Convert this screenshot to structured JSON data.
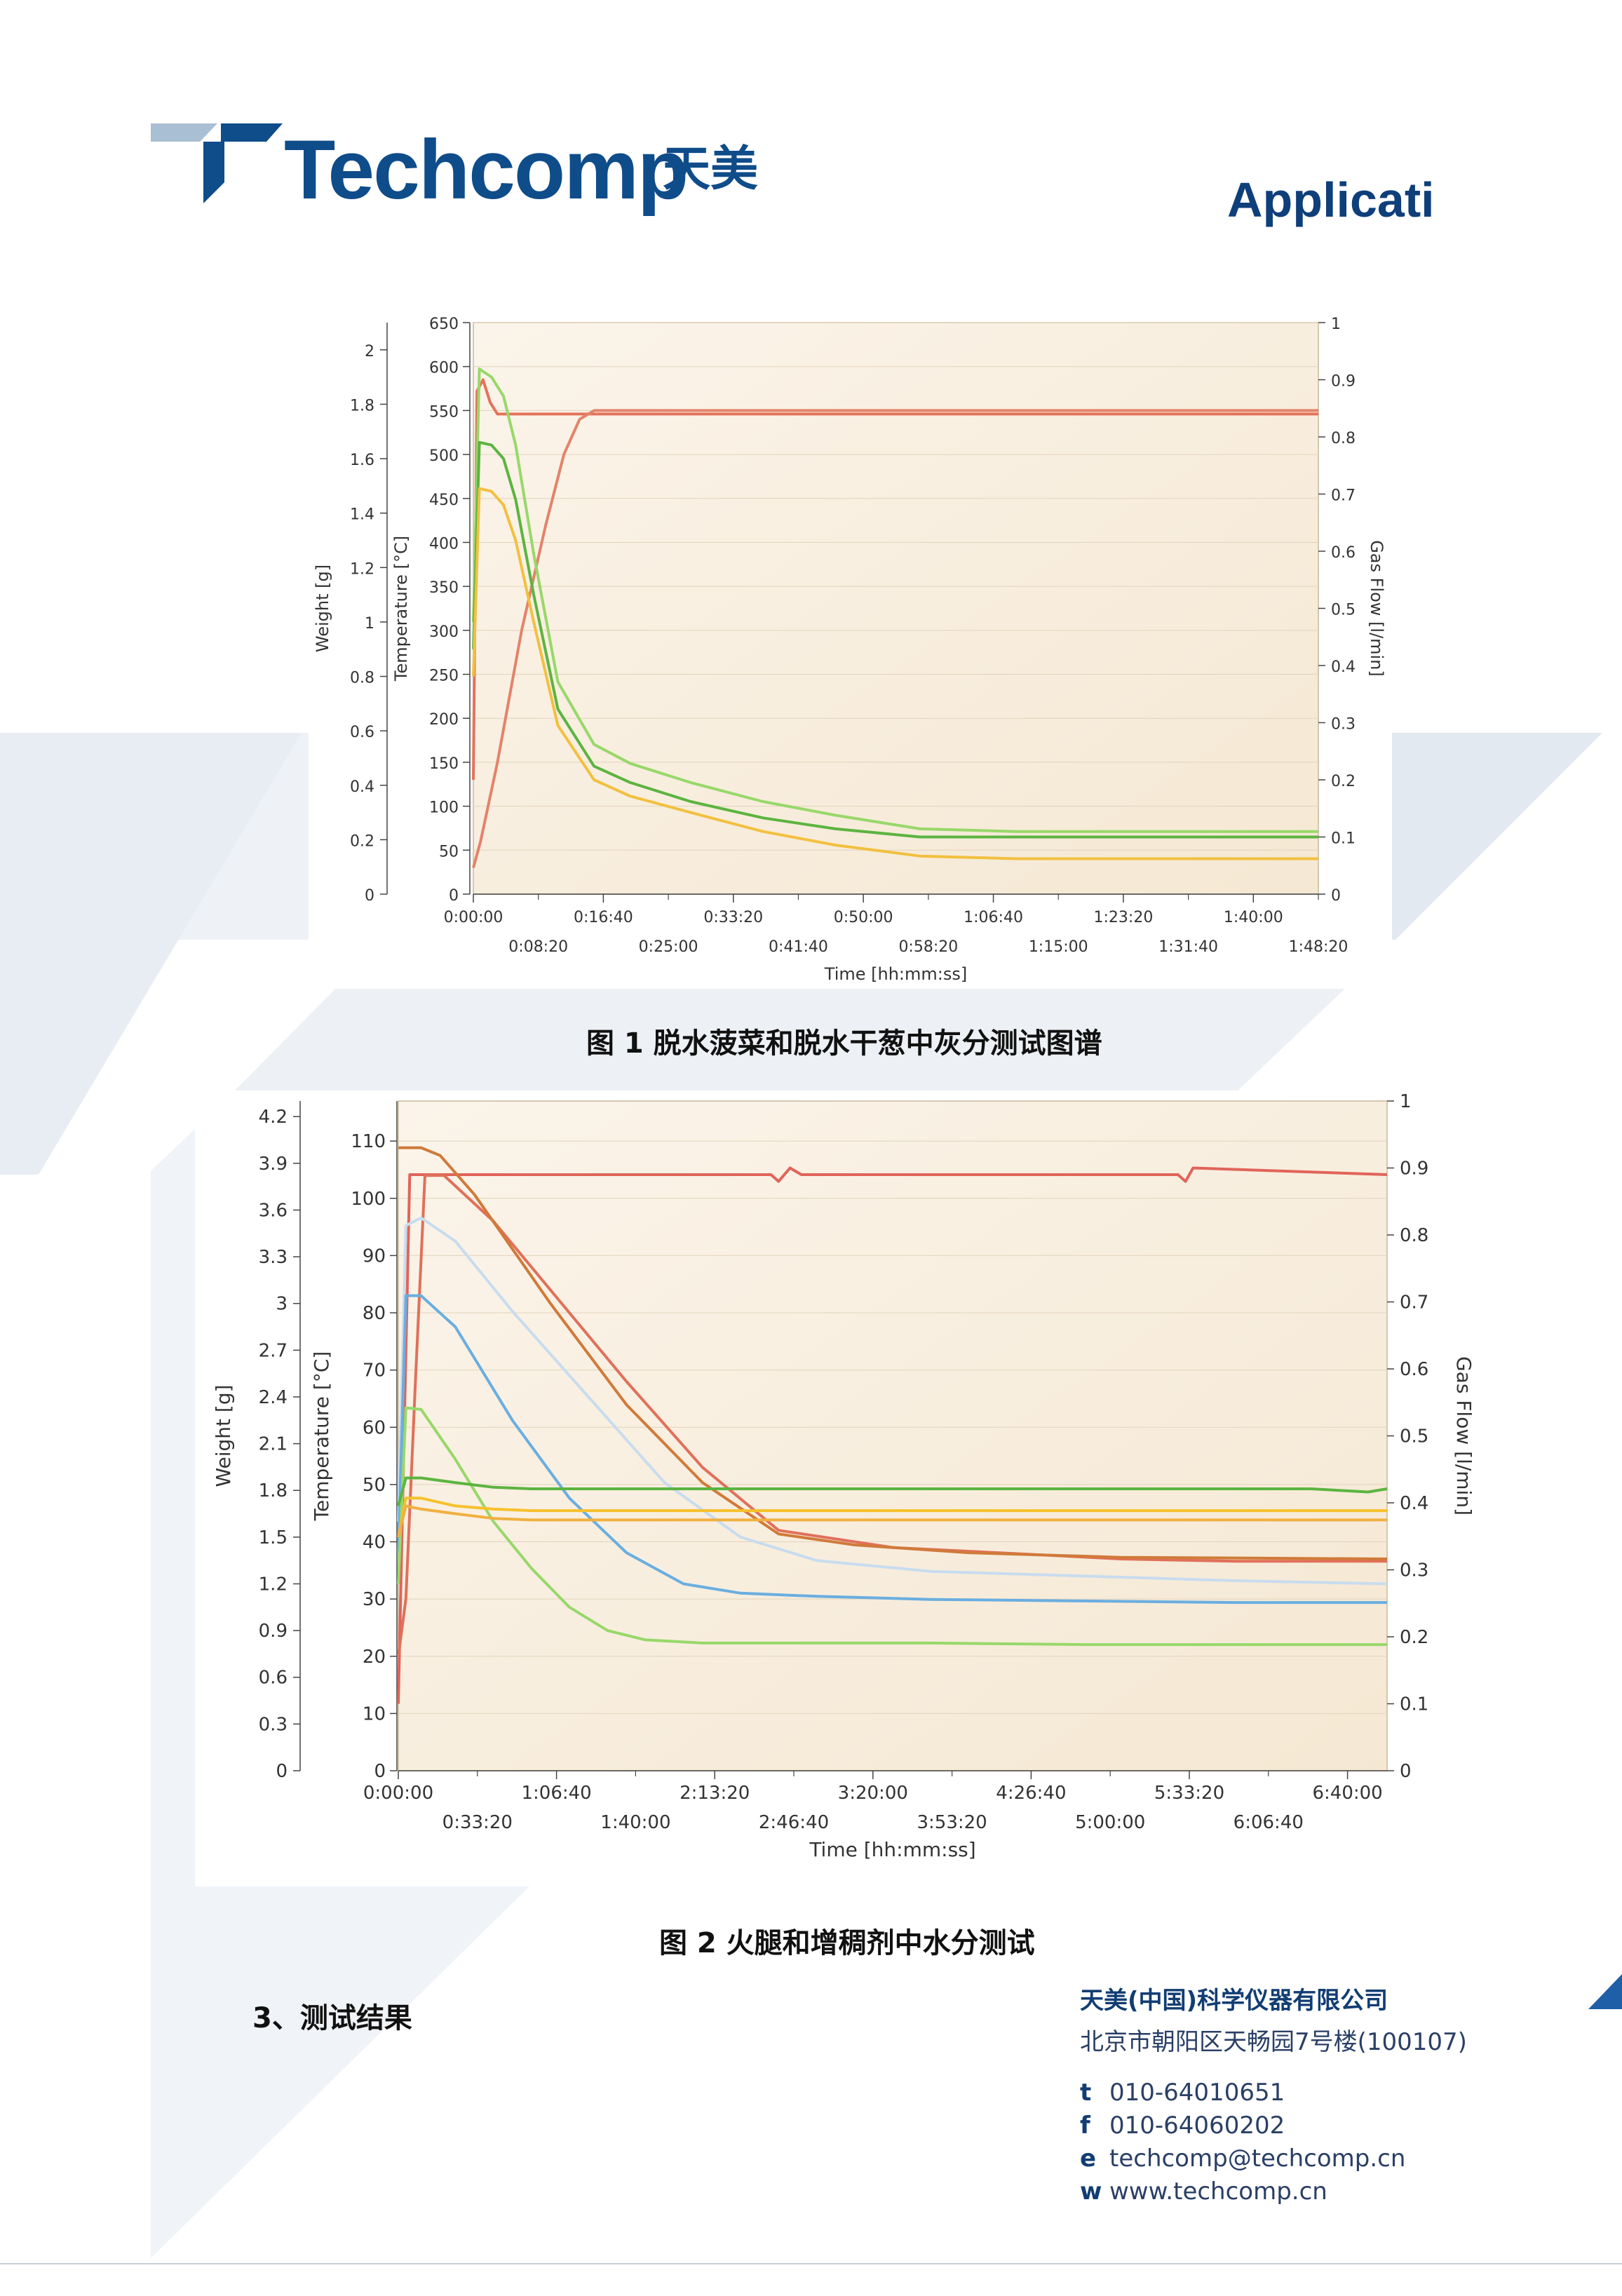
{
  "header": {
    "logo_text": "Techcomp",
    "logo_cn": "天美",
    "doc_type": "Applicati"
  },
  "chart_data": [
    {
      "type": "line",
      "xlabel": "Time [hh:mm:ss]",
      "ylabel": "Temperature [°C]",
      "y2label": "Weight [g]",
      "y3label": "Gas Flow [l/min]",
      "xlim": [
        0,
        7000
      ],
      "ylim": [
        0,
        650
      ],
      "y2lim": [
        0,
        2.1
      ],
      "y3lim": [
        0,
        1
      ],
      "x_ticks_top": [
        "0:00:00",
        "0:16:40",
        "0:33:20",
        "0:50:00",
        "1:06:40",
        "1:23:20",
        "1:40:00"
      ],
      "x_ticks_bottom": [
        "0:08:20",
        "0:25:00",
        "0:41:40",
        "0:58:20",
        "1:15:00",
        "1:31:40",
        "1:48:20"
      ],
      "y_ticks": [
        "650",
        "600",
        "550",
        "500",
        "450",
        "400",
        "350",
        "300",
        "250",
        "200",
        "150",
        "100",
        "50",
        "0"
      ],
      "y2_ticks": [
        "2",
        "1.8",
        "1.6",
        "1.4",
        "1.2",
        "1",
        "0.8",
        "0.6",
        "0.4",
        "0.2",
        "0"
      ],
      "y3_ticks": [
        "1",
        "0.9",
        "0.8",
        "0.7",
        "0.6",
        "0.5",
        "0.4",
        "0.3",
        "0.2",
        "0.1",
        "0"
      ],
      "series": [
        {
          "color": "#e3735b",
          "x": [
            0,
            30,
            80,
            140,
            200,
            260,
            300,
            400,
            7000
          ],
          "y": [
            0.2,
            0.88,
            0.9,
            0.86,
            0.84,
            0.84,
            0.84,
            0.84,
            0.84
          ],
          "axis": "y3"
        },
        {
          "color": "#e3836b",
          "x": [
            0,
            60,
            200,
            400,
            600,
            750,
            880,
            1000,
            7000
          ],
          "y": [
            30,
            60,
            150,
            300,
            420,
            500,
            540,
            550,
            550
          ],
          "axis": "y"
        },
        {
          "color": "#98d86a",
          "x": [
            0,
            50,
            150,
            250,
            350,
            500,
            700,
            1000,
            1300,
            1800,
            2400,
            3000,
            3700,
            4500,
            7000
          ],
          "y": [
            1.0,
            1.93,
            1.9,
            1.83,
            1.65,
            1.25,
            0.78,
            0.55,
            0.48,
            0.41,
            0.34,
            0.29,
            0.24,
            0.23,
            0.23
          ],
          "axis": "y2"
        },
        {
          "color": "#5cb440",
          "x": [
            0,
            50,
            150,
            250,
            350,
            500,
            700,
            1000,
            1300,
            1800,
            2400,
            3000,
            3700,
            4500,
            7000
          ],
          "y": [
            0.9,
            1.66,
            1.65,
            1.6,
            1.45,
            1.1,
            0.68,
            0.47,
            0.41,
            0.34,
            0.28,
            0.24,
            0.21,
            0.21,
            0.21
          ],
          "axis": "y2"
        },
        {
          "color": "#f2c040",
          "x": [
            0,
            50,
            150,
            250,
            350,
            500,
            700,
            1000,
            1300,
            1800,
            2400,
            3000,
            3700,
            4500,
            7000
          ],
          "y": [
            0.8,
            1.49,
            1.48,
            1.43,
            1.3,
            1.0,
            0.62,
            0.42,
            0.36,
            0.3,
            0.23,
            0.18,
            0.14,
            0.13,
            0.13
          ],
          "axis": "y2"
        }
      ]
    },
    {
      "type": "line",
      "xlabel": "Time [hh:mm:ss]",
      "ylabel": "Temperature [°C]",
      "y2label": "Weight [g]",
      "y3label": "Gas Flow [l/min]",
      "xlim": [
        0,
        26000
      ],
      "ylim": [
        0,
        117
      ],
      "y2lim": [
        0,
        4.3
      ],
      "y3lim": [
        0,
        1
      ],
      "x_ticks_top": [
        "0:00:00",
        "1:06:40",
        "2:13:20",
        "3:20:00",
        "4:26:40",
        "5:33:20",
        "6:40:00"
      ],
      "x_ticks_bottom": [
        "0:33:20",
        "1:40:00",
        "2:46:40",
        "3:53:20",
        "5:00:00",
        "6:06:40"
      ],
      "y_ticks": [
        "110",
        "100",
        "90",
        "80",
        "70",
        "60",
        "50",
        "40",
        "30",
        "20",
        "10",
        "0"
      ],
      "y2_ticks": [
        "4.2",
        "3.9",
        "3.6",
        "3.3",
        "3",
        "2.7",
        "2.4",
        "2.1",
        "1.8",
        "1.5",
        "1.2",
        "0.9",
        "0.6",
        "0.3",
        "0"
      ],
      "y3_ticks": [
        "1",
        "0.9",
        "0.8",
        "0.7",
        "0.6",
        "0.5",
        "0.4",
        "0.3",
        "0.2",
        "0.1",
        "0"
      ],
      "series": [
        {
          "color": "#e0645a",
          "x": [
            0,
            300,
            700,
            9800,
            10000,
            10300,
            10600,
            20500,
            20700,
            20900,
            26000
          ],
          "y": [
            0.1,
            0.89,
            0.89,
            0.89,
            0.88,
            0.9,
            0.89,
            0.89,
            0.88,
            0.9,
            0.89
          ],
          "axis": "y3"
        },
        {
          "color": "#e0705a",
          "x": [
            0,
            200,
            450,
            700,
            1200,
            2500,
            4000,
            6000,
            8000,
            10000,
            13000,
            16000,
            19000,
            22000,
            26000
          ],
          "y": [
            20,
            30,
            68,
            104,
            104,
            96,
            84,
            68,
            53,
            42,
            39,
            38,
            37,
            36.6,
            36.6
          ],
          "axis": "y"
        },
        {
          "color": "#d07a3a",
          "x": [
            0,
            600,
            1100,
            2000,
            4000,
            6000,
            8000,
            10000,
            12000,
            15000,
            19000,
            26000
          ],
          "y": [
            4.0,
            4.0,
            3.95,
            3.7,
            3.0,
            2.35,
            1.85,
            1.52,
            1.45,
            1.4,
            1.37,
            1.36
          ],
          "axis": "y2"
        },
        {
          "color": "#c8dcee",
          "x": [
            0,
            200,
            600,
            1500,
            3000,
            5000,
            7000,
            9000,
            11000,
            14000,
            18000,
            22000,
            26000
          ],
          "y": [
            1.6,
            3.5,
            3.55,
            3.4,
            2.95,
            2.4,
            1.85,
            1.5,
            1.35,
            1.28,
            1.25,
            1.22,
            1.2
          ],
          "axis": "y2"
        },
        {
          "color": "#6aaee0",
          "x": [
            0,
            200,
            600,
            1500,
            3000,
            4500,
            6000,
            7500,
            9000,
            11000,
            14000,
            18000,
            22000,
            26000
          ],
          "y": [
            1.4,
            3.05,
            3.05,
            2.85,
            2.25,
            1.75,
            1.4,
            1.2,
            1.14,
            1.12,
            1.1,
            1.09,
            1.08,
            1.08
          ],
          "axis": "y2"
        },
        {
          "color": "#98d86a",
          "x": [
            0,
            200,
            600,
            1500,
            2500,
            3500,
            4500,
            5500,
            6500,
            8000,
            10000,
            14000,
            18000,
            22000,
            26000
          ],
          "y": [
            1.2,
            2.33,
            2.32,
            2.0,
            1.6,
            1.3,
            1.05,
            0.9,
            0.84,
            0.82,
            0.82,
            0.82,
            0.81,
            0.81,
            0.81
          ],
          "axis": "y2"
        },
        {
          "color": "#5cb440",
          "x": [
            0,
            200,
            600,
            1500,
            2500,
            3500,
            5000,
            8000,
            12000,
            16000,
            20000,
            24000,
            25500,
            26000
          ],
          "y": [
            1.7,
            1.88,
            1.88,
            1.85,
            1.82,
            1.81,
            1.81,
            1.81,
            1.81,
            1.81,
            1.81,
            1.81,
            1.79,
            1.81
          ],
          "axis": "y2"
        },
        {
          "color": "#f6c12b",
          "x": [
            0,
            200,
            600,
            1500,
            2500,
            3500,
            6000,
            12000,
            20000,
            26000
          ],
          "y": [
            1.5,
            1.75,
            1.75,
            1.7,
            1.68,
            1.67,
            1.67,
            1.67,
            1.67,
            1.67
          ],
          "axis": "y2"
        },
        {
          "color": "#f0b040",
          "x": [
            0,
            200,
            600,
            1500,
            2500,
            3500,
            6000,
            12000,
            20000,
            26000
          ],
          "y": [
            1.5,
            1.7,
            1.68,
            1.65,
            1.62,
            1.61,
            1.61,
            1.61,
            1.61,
            1.61
          ],
          "axis": "y2"
        }
      ]
    }
  ],
  "captions": {
    "fig1": "图 1  脱水菠菜和脱水干葱中灰分测试图谱",
    "fig2": "图 2  火腿和增稠剂中水分测试"
  },
  "section_heading": "3、测试结果",
  "contact": {
    "company": "天美(中国)科学仪器有限公司",
    "address": "北京市朝阳区天畅园7号楼(100107)",
    "lines": [
      {
        "key": "t",
        "value": "010-64010651"
      },
      {
        "key": "f",
        "value": "010-64060202"
      },
      {
        "key": "e",
        "value": "techcomp@techcomp.cn"
      },
      {
        "key": "w",
        "value": "www.techcomp.cn"
      }
    ]
  },
  "colors": {
    "brand": "#0f4c8a",
    "plot_bg": "#f5e8d3",
    "bg_shape": "#edf1f5"
  }
}
